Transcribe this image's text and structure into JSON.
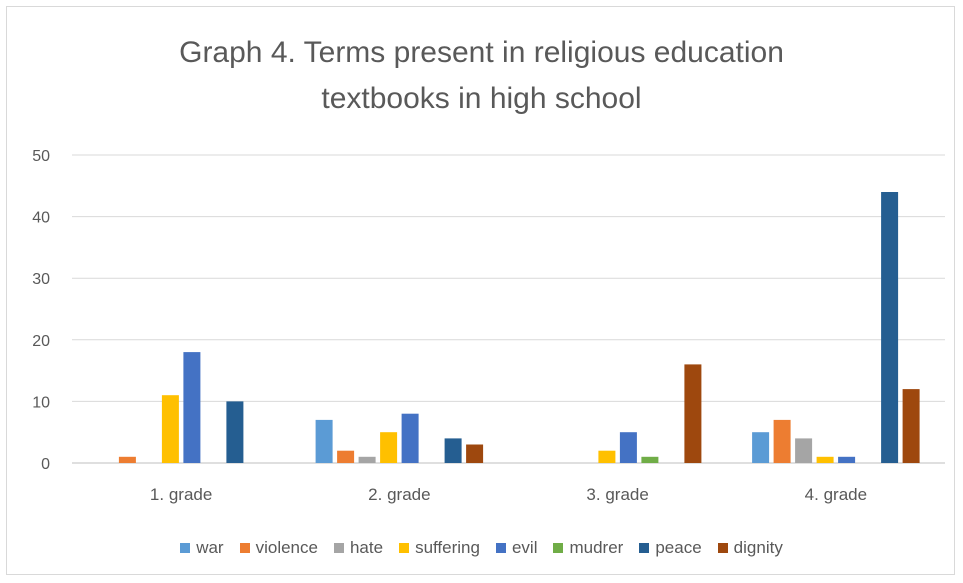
{
  "chart_data": {
    "type": "bar",
    "title_lines": [
      "Graph 4. Terms present in religious education",
      "textbooks in high school"
    ],
    "categories": [
      "1. grade",
      "2. grade",
      "3. grade",
      "4. grade"
    ],
    "ylim": [
      0,
      50
    ],
    "yticks": [
      0,
      10,
      20,
      30,
      40,
      50
    ],
    "grid": true,
    "legend_position": "bottom",
    "series": [
      {
        "name": "war",
        "color": "#5b9bd5",
        "values": [
          0,
          7,
          0,
          5
        ]
      },
      {
        "name": "violence",
        "color": "#ed7d31",
        "values": [
          1,
          2,
          0,
          7
        ]
      },
      {
        "name": "hate",
        "color": "#a5a5a5",
        "values": [
          0,
          1,
          0,
          4
        ]
      },
      {
        "name": "suffering",
        "color": "#ffc000",
        "values": [
          11,
          5,
          2,
          1
        ]
      },
      {
        "name": "evil",
        "color": "#4472c4",
        "values": [
          18,
          8,
          5,
          1
        ]
      },
      {
        "name": "mudrer",
        "color": "#70ad47",
        "values": [
          0,
          0,
          1,
          0
        ]
      },
      {
        "name": "peace",
        "color": "#255e91",
        "values": [
          10,
          4,
          0,
          44
        ]
      },
      {
        "name": "dignity",
        "color": "#9e480e",
        "values": [
          0,
          3,
          16,
          12
        ]
      }
    ]
  }
}
